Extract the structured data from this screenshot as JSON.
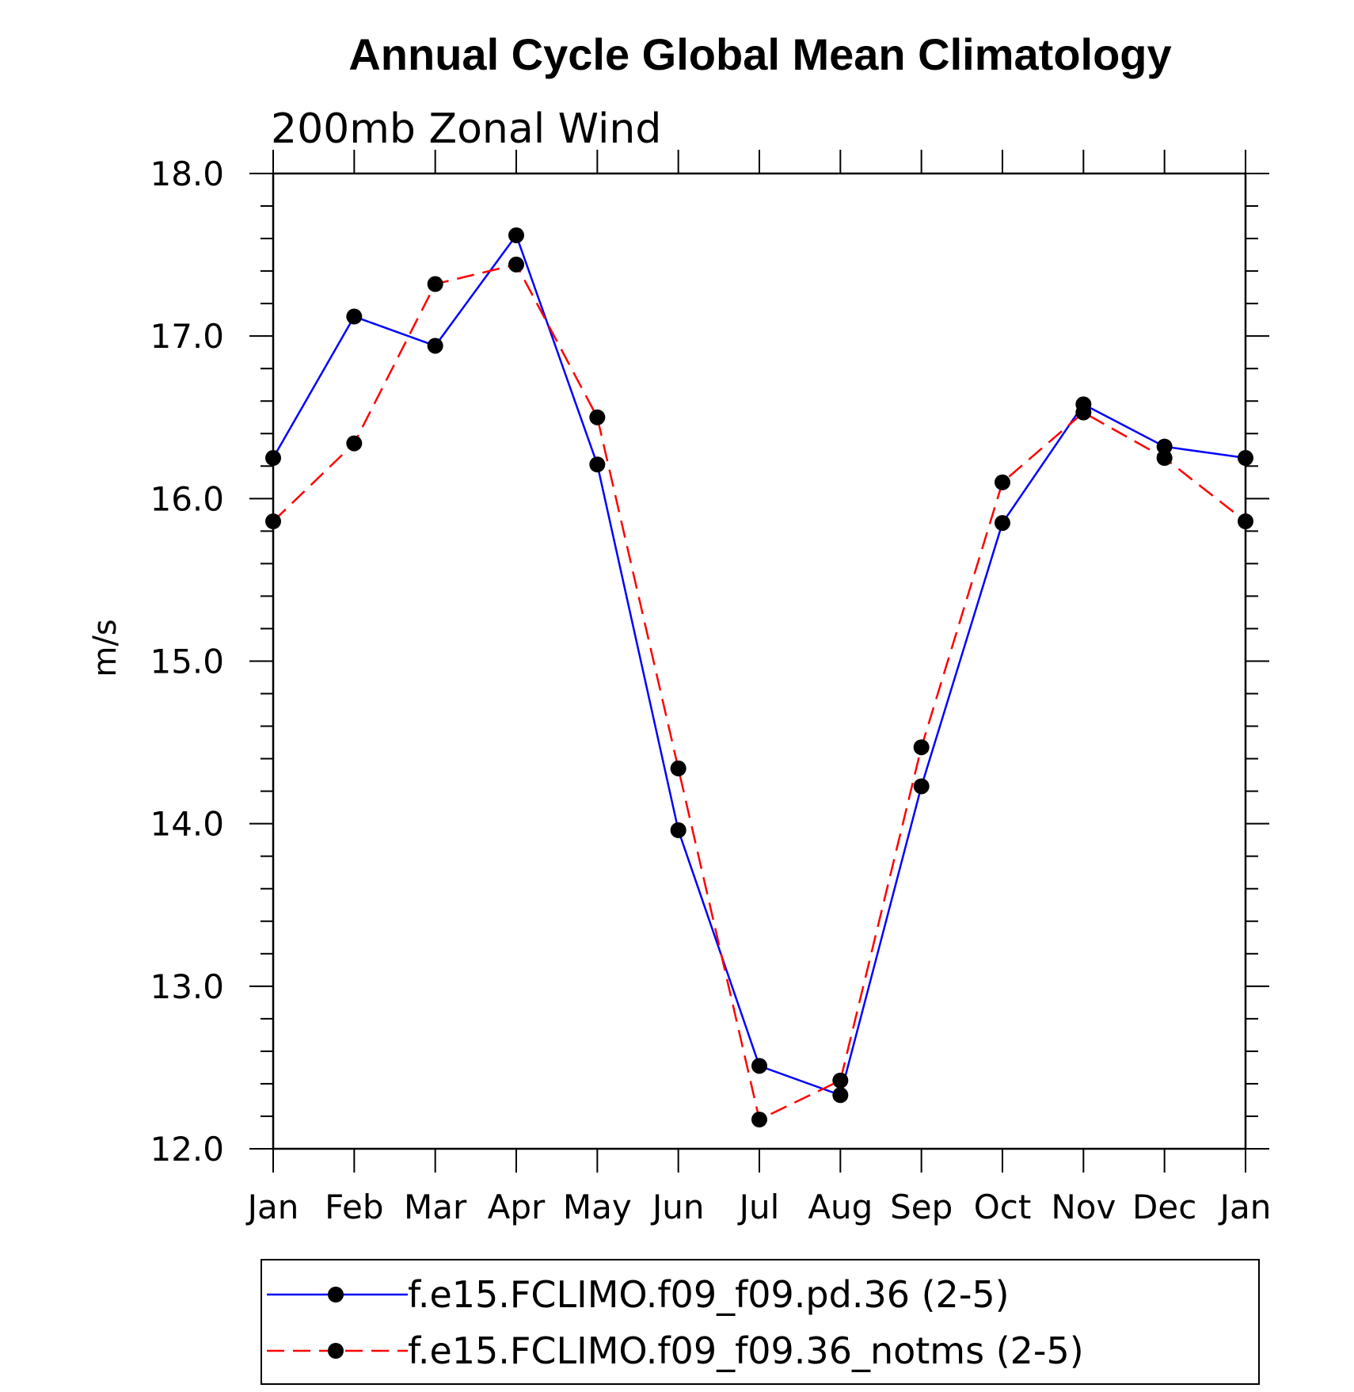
{
  "chart_data": {
    "type": "line",
    "title": "Annual Cycle Global Mean Climatology",
    "subtitle": "200mb Zonal Wind",
    "ylabel": "m/s",
    "xlabel": "",
    "categories": [
      "Jan",
      "Feb",
      "Mar",
      "Apr",
      "May",
      "Jun",
      "Jul",
      "Aug",
      "Sep",
      "Oct",
      "Nov",
      "Dec",
      "Jan"
    ],
    "ylim": [
      12.0,
      18.0
    ],
    "yticks": [
      "12.0",
      "13.0",
      "14.0",
      "15.0",
      "16.0",
      "17.0",
      "18.0"
    ],
    "series": [
      {
        "name": "f.e15.FCLIMO.f09_f09.pd.36 (2-5)",
        "color": "#0000ff",
        "dash": "solid",
        "marker": "circle",
        "values": [
          16.25,
          17.12,
          16.94,
          17.62,
          16.21,
          13.96,
          12.51,
          12.33,
          14.23,
          15.85,
          16.58,
          16.32,
          16.25
        ]
      },
      {
        "name": "f.e15.FCLIMO.f09_f09.36_notms (2-5)",
        "color": "#ff0000",
        "dash": "dashed",
        "marker": "circle",
        "values": [
          15.86,
          16.34,
          17.32,
          17.44,
          16.5,
          14.34,
          12.18,
          12.42,
          14.47,
          16.1,
          16.53,
          16.25,
          15.86
        ]
      }
    ],
    "legend_position": "bottom"
  }
}
